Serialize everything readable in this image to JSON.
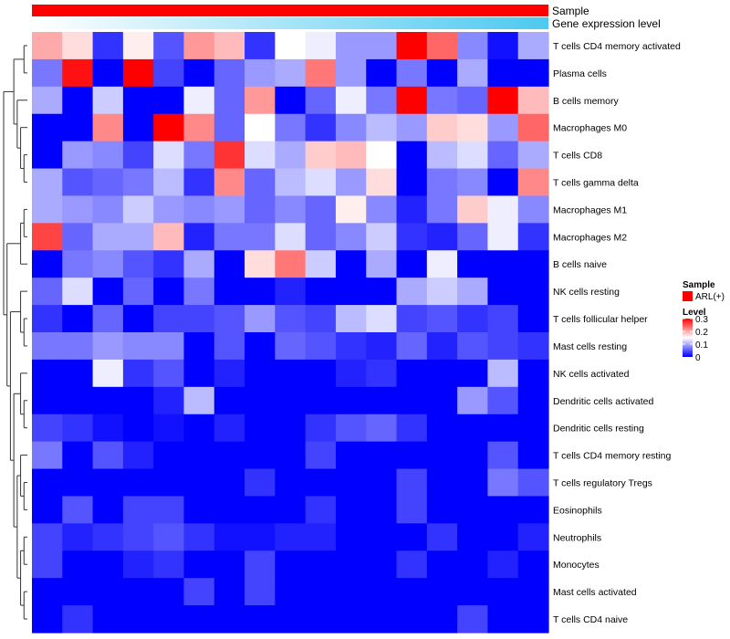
{
  "chart_data": {
    "type": "heatmap",
    "column_count": 17,
    "annotations": [
      {
        "label": "Sample",
        "type": "categorical",
        "colors": [
          "#ff0000"
        ]
      },
      {
        "label": "Gene expression level",
        "type": "gradient",
        "colors": [
          "#ffffff",
          "#4dc9f0"
        ]
      }
    ],
    "rows": [
      "T cells CD4 memory activated",
      "Plasma cells",
      "B cells memory",
      "Macrophages M0",
      "T cells CD8",
      "T cells gamma delta",
      "Macrophages M1",
      "Macrophages M2",
      "B cells naive",
      "NK cells resting",
      "T cells follicular helper",
      "Mast cells resting",
      "NK cells activated",
      "Dendritic cells activated",
      "Dendritic cells resting",
      "T cells CD4 memory resting",
      "T cells regulatory  Tregs",
      "Eosinophils",
      "Neutrophils",
      "Monocytes",
      "Mast cells activated",
      "T cells CD4 naive"
    ],
    "values": [
      [
        0.2,
        0.17,
        0.03,
        0.16,
        0.05,
        0.21,
        0.19,
        0.03,
        0.15,
        0.14,
        0.09,
        0.09,
        0.3,
        0.24,
        0.08,
        0.01,
        0.1
      ],
      [
        0.07,
        0.29,
        0.0,
        0.3,
        0.04,
        0.0,
        0.06,
        0.09,
        0.1,
        0.23,
        0.09,
        0.0,
        0.07,
        0.0,
        0.1,
        0.0,
        0.0
      ],
      [
        0.1,
        0.0,
        0.12,
        0.0,
        0.0,
        0.14,
        0.06,
        0.21,
        0.0,
        0.06,
        0.14,
        0.07,
        0.3,
        0.07,
        0.06,
        0.3,
        0.19
      ],
      [
        0.0,
        0.0,
        0.22,
        0.0,
        0.3,
        0.22,
        0.06,
        0.15,
        0.07,
        0.03,
        0.08,
        0.11,
        0.09,
        0.18,
        0.17,
        0.09,
        0.24
      ],
      [
        0.0,
        0.09,
        0.08,
        0.04,
        0.13,
        0.07,
        0.27,
        0.13,
        0.1,
        0.18,
        0.19,
        0.15,
        0.0,
        0.11,
        0.13,
        0.06,
        0.1
      ],
      [
        0.1,
        0.05,
        0.06,
        0.07,
        0.11,
        0.03,
        0.22,
        0.06,
        0.11,
        0.13,
        0.09,
        0.17,
        0.0,
        0.07,
        0.08,
        0.0,
        0.22
      ],
      [
        0.1,
        0.09,
        0.08,
        0.12,
        0.09,
        0.08,
        0.09,
        0.06,
        0.08,
        0.06,
        0.16,
        0.08,
        0.02,
        0.07,
        0.18,
        0.14,
        0.08
      ],
      [
        0.26,
        0.06,
        0.1,
        0.1,
        0.19,
        0.02,
        0.07,
        0.07,
        0.13,
        0.06,
        0.08,
        0.12,
        0.03,
        0.02,
        0.06,
        0.14,
        0.03
      ],
      [
        0.0,
        0.07,
        0.08,
        0.05,
        0.03,
        0.1,
        0.0,
        0.17,
        0.23,
        0.12,
        0.0,
        0.1,
        0.0,
        0.14,
        0.0,
        0.0,
        0.0
      ],
      [
        0.06,
        0.13,
        0.0,
        0.06,
        0.0,
        0.07,
        0.0,
        0.0,
        0.02,
        0.0,
        0.0,
        0.0,
        0.1,
        0.12,
        0.1,
        0.0,
        0.0
      ],
      [
        0.03,
        0.0,
        0.06,
        0.0,
        0.04,
        0.04,
        0.05,
        0.09,
        0.05,
        0.04,
        0.11,
        0.13,
        0.04,
        0.05,
        0.03,
        0.04,
        0.0
      ],
      [
        0.07,
        0.07,
        0.09,
        0.08,
        0.08,
        0.0,
        0.05,
        0.0,
        0.06,
        0.05,
        0.03,
        0.02,
        0.06,
        0.02,
        0.05,
        0.04,
        0.03
      ],
      [
        0.0,
        0.0,
        0.14,
        0.03,
        0.05,
        0.0,
        0.02,
        0.0,
        0.0,
        0.0,
        0.02,
        0.03,
        0.0,
        0.0,
        0.0,
        0.11,
        0.0
      ],
      [
        0.0,
        0.0,
        0.0,
        0.0,
        0.02,
        0.11,
        0.0,
        0.0,
        0.0,
        0.0,
        0.0,
        0.0,
        0.0,
        0.0,
        0.09,
        0.05,
        0.0
      ],
      [
        0.04,
        0.03,
        0.01,
        0.0,
        0.01,
        0.0,
        0.02,
        0.0,
        0.0,
        0.03,
        0.05,
        0.06,
        0.03,
        0.0,
        0.0,
        0.0,
        0.0
      ],
      [
        0.07,
        0.0,
        0.05,
        0.02,
        0.0,
        0.0,
        0.0,
        0.0,
        0.0,
        0.04,
        0.0,
        0.0,
        0.0,
        0.0,
        0.0,
        0.05,
        0.0
      ],
      [
        0.0,
        0.0,
        0.0,
        0.0,
        0.0,
        0.0,
        0.0,
        0.03,
        0.0,
        0.0,
        0.0,
        0.0,
        0.04,
        0.0,
        0.0,
        0.07,
        0.05
      ],
      [
        0.0,
        0.05,
        0.0,
        0.04,
        0.04,
        0.0,
        0.0,
        0.0,
        0.0,
        0.03,
        0.0,
        0.0,
        0.04,
        0.0,
        0.0,
        0.0,
        0.0
      ],
      [
        0.04,
        0.02,
        0.03,
        0.04,
        0.05,
        0.03,
        0.01,
        0.01,
        0.02,
        0.02,
        0.0,
        0.0,
        0.0,
        0.03,
        0.0,
        0.0,
        0.02
      ],
      [
        0.04,
        0.0,
        0.0,
        0.02,
        0.03,
        0.0,
        0.0,
        0.04,
        0.0,
        0.0,
        0.0,
        0.0,
        0.03,
        0.0,
        0.0,
        0.02,
        0.0
      ],
      [
        0.0,
        0.0,
        0.0,
        0.0,
        0.0,
        0.04,
        0.0,
        0.04,
        0.0,
        0.0,
        0.0,
        0.0,
        0.0,
        0.0,
        0.0,
        0.0,
        0.0
      ],
      [
        0.0,
        0.03,
        0.0,
        0.0,
        0.0,
        0.0,
        0.0,
        0.0,
        0.0,
        0.0,
        0.0,
        0.0,
        0.0,
        0.0,
        0.04,
        0.0,
        0.0
      ]
    ],
    "color_scale": {
      "min": 0,
      "max": 0.3,
      "low_color": "#0000ff",
      "mid_color": "#ffffff",
      "high_color": "#ff0000"
    },
    "legend": {
      "placement": "right",
      "sample": {
        "title": "Sample",
        "entries": [
          "ARL(+)"
        ],
        "colors": [
          "#ff0000"
        ]
      },
      "level": {
        "title": "Level",
        "ticks": [
          "0.3",
          "0.2",
          "0.1",
          "0"
        ]
      }
    },
    "dendrogram": "rows"
  }
}
